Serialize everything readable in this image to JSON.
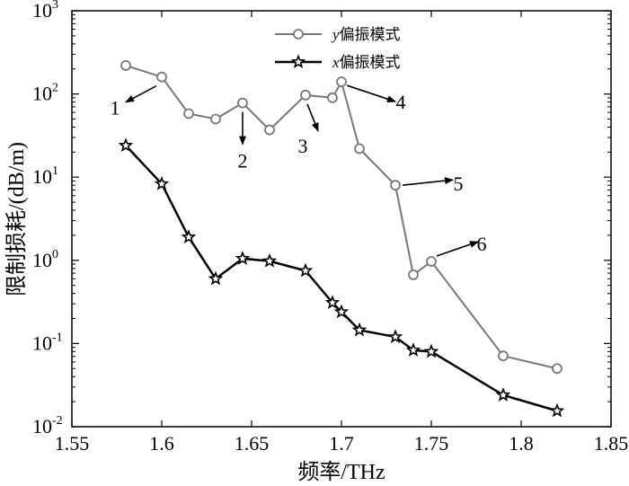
{
  "chart_data": {
    "type": "line",
    "title": "",
    "xlabel": "频率/THz",
    "ylabel": "限制损耗/(dB/m)",
    "xlim": [
      1.55,
      1.85
    ],
    "ylim": [
      0.01,
      1000
    ],
    "yscale": "log",
    "x_ticks": [
      "1.55",
      "1.6",
      "1.65",
      "1.7",
      "1.75",
      "1.8",
      "1.85"
    ],
    "y_ticks": [
      {
        "base": "10",
        "exp": "-2"
      },
      {
        "base": "10",
        "exp": "-1"
      },
      {
        "base": "10",
        "exp": "0"
      },
      {
        "base": "10",
        "exp": "1"
      },
      {
        "base": "10",
        "exp": "2"
      },
      {
        "base": "10",
        "exp": "3"
      }
    ],
    "grid": false,
    "legend_position": "top-center",
    "series": [
      {
        "name": "y偏振模式",
        "legend_var": "y",
        "legend_text": "偏振模式",
        "marker": "circle",
        "color": "#777777",
        "points": [
          [
            1.58,
            220
          ],
          [
            1.6,
            160
          ],
          [
            1.615,
            58
          ],
          [
            1.63,
            50
          ],
          [
            1.645,
            78
          ],
          [
            1.66,
            37
          ],
          [
            1.68,
            97
          ],
          [
            1.695,
            90
          ],
          [
            1.7,
            140
          ],
          [
            1.71,
            22
          ],
          [
            1.73,
            8
          ],
          [
            1.74,
            0.67
          ],
          [
            1.75,
            0.97
          ],
          [
            1.79,
            0.071
          ],
          [
            1.82,
            0.05
          ]
        ]
      },
      {
        "name": "x偏振模式",
        "legend_var": "x",
        "legend_text": "偏振模式",
        "marker": "star",
        "color": "#000000",
        "points": [
          [
            1.58,
            24
          ],
          [
            1.6,
            8.3
          ],
          [
            1.615,
            1.9
          ],
          [
            1.63,
            0.6
          ],
          [
            1.645,
            1.05
          ],
          [
            1.66,
            0.98
          ],
          [
            1.68,
            0.75
          ],
          [
            1.695,
            0.31
          ],
          [
            1.7,
            0.24
          ],
          [
            1.71,
            0.145
          ],
          [
            1.73,
            0.12
          ],
          [
            1.74,
            0.083
          ],
          [
            1.75,
            0.08
          ],
          [
            1.79,
            0.024
          ],
          [
            1.82,
            0.0155
          ]
        ]
      }
    ],
    "annotations": [
      {
        "label": "1",
        "point": [
          1.6,
          160
        ]
      },
      {
        "label": "2",
        "point": [
          1.645,
          78
        ]
      },
      {
        "label": "3",
        "point": [
          1.68,
          97
        ]
      },
      {
        "label": "4",
        "point": [
          1.7,
          140
        ]
      },
      {
        "label": "5",
        "point": [
          1.73,
          8
        ]
      },
      {
        "label": "6",
        "point": [
          1.75,
          0.97
        ]
      }
    ]
  }
}
